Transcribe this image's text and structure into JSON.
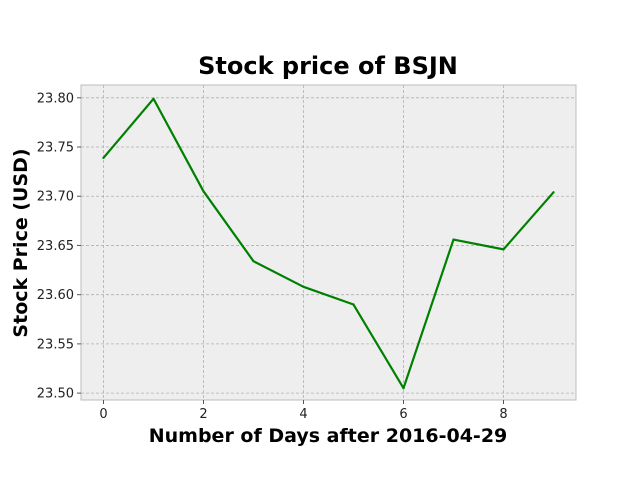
{
  "chart_data": {
    "type": "line",
    "title": "Stock price of BSJN",
    "xlabel": "Number of Days after 2016-04-29",
    "ylabel": "Stock Price (USD)",
    "x": [
      0,
      1,
      2,
      3,
      4,
      5,
      6,
      7,
      8,
      9
    ],
    "series": [
      {
        "values": [
          23.739,
          23.799,
          23.705,
          23.634,
          23.608,
          23.59,
          23.505,
          23.656,
          23.646,
          23.704
        ],
        "color": "#008000"
      }
    ],
    "xlim": [
      -0.45,
      9.45
    ],
    "ylim": [
      23.493,
      23.813
    ],
    "xticks": [
      0,
      2,
      4,
      6,
      8
    ],
    "yticks": [
      23.5,
      23.55,
      23.6,
      23.65,
      23.7,
      23.75,
      23.8
    ],
    "xtick_labels": [
      "0",
      "2",
      "4",
      "6",
      "8"
    ],
    "ytick_labels": [
      "23.50",
      "23.55",
      "23.60",
      "23.65",
      "23.70",
      "23.75",
      "23.80"
    ],
    "grid": true,
    "grid_color": "#b0b0b0",
    "plot_background": "#eeeeee",
    "spine_color": "#bcbcbc"
  }
}
